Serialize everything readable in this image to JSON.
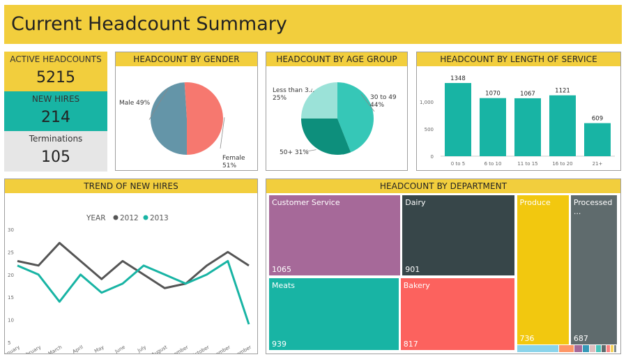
{
  "dashboard": {
    "title": "Current Headcount Summary"
  },
  "kpis": [
    {
      "label": "ACTIVE HEADCOUNTS",
      "value": "5215",
      "color": "#f2ce3d"
    },
    {
      "label": "NEW HIRES",
      "value": "214",
      "color": "#18b4a4"
    },
    {
      "label": "Terminations",
      "value": "105",
      "color": "#e6e6e6"
    }
  ],
  "panels": {
    "gender": "HEADCOUNT BY GENDER",
    "age": "HEADCOUNT BY AGE GROUP",
    "service": "HEADCOUNT BY LENGTH OF SERVICE",
    "trend": "TREND OF NEW HIRES",
    "department": "HEADCOUNT BY DEPARTMENT"
  },
  "chart_data": [
    {
      "id": "gender",
      "type": "pie",
      "title": "HEADCOUNT BY GENDER",
      "slices": [
        {
          "label": "Male",
          "value": 49,
          "display": "Male 49%",
          "color": "#6495a8"
        },
        {
          "label": "Female",
          "value": 51,
          "display": "Female 51%",
          "color": "#f6786f"
        }
      ]
    },
    {
      "id": "age",
      "type": "pie",
      "title": "HEADCOUNT BY AGE GROUP",
      "slices": [
        {
          "label": "30 to 49",
          "value": 44,
          "display": "30 to 49 44%",
          "color": "#36c7b7"
        },
        {
          "label": "50+",
          "value": 31,
          "display": "50+ 31%",
          "color": "#0d8f7c"
        },
        {
          "label": "Less than 3...",
          "value": 25,
          "display": "Less than 3... 25%",
          "color": "#9be2d8"
        }
      ]
    },
    {
      "id": "service",
      "type": "bar",
      "title": "HEADCOUNT BY LENGTH OF SERVICE",
      "categories": [
        "0 to 5",
        "6 to 10",
        "11 to 15",
        "16 to 20",
        "21+"
      ],
      "values": [
        1348,
        1070,
        1067,
        1121,
        609
      ],
      "ylim": [
        0,
        1400
      ],
      "yticks": [
        "0",
        "500",
        "1,000"
      ],
      "color": "#18b4a4"
    },
    {
      "id": "trend",
      "type": "line",
      "title": "TREND OF NEW HIRES",
      "legend_title": "YEAR",
      "categories": [
        "January",
        "February",
        "March",
        "April",
        "May",
        "June",
        "July",
        "August",
        "September",
        "October",
        "November",
        "December"
      ],
      "ylim": [
        5,
        30
      ],
      "yticks": [
        "5",
        "10",
        "15",
        "20",
        "25",
        "30"
      ],
      "series": [
        {
          "name": "2012",
          "color": "#555555",
          "values": [
            23,
            22,
            27,
            23,
            19,
            23,
            20,
            17,
            18,
            22,
            25,
            22
          ]
        },
        {
          "name": "2013",
          "color": "#18b4a4",
          "values": [
            22,
            20,
            14,
            20,
            16,
            18,
            22,
            20,
            18,
            20,
            23,
            9
          ]
        }
      ]
    },
    {
      "id": "department",
      "type": "treemap",
      "title": "HEADCOUNT BY DEPARTMENT",
      "items": [
        {
          "name": "Customer Service",
          "value": 1065,
          "color": "#a66999"
        },
        {
          "name": "Dairy",
          "value": 901,
          "color": "#374649"
        },
        {
          "name": "Meats",
          "value": 939,
          "color": "#18b4a4"
        },
        {
          "name": "Bakery",
          "value": 817,
          "color": "#fc625e"
        },
        {
          "name": "Produce",
          "value": 736,
          "color": "#f2c80f"
        },
        {
          "name": "Processed ...",
          "value": 687,
          "color": "#5f6b6d"
        }
      ],
      "small_tile_colors": [
        "#8ad4eb",
        "#fe9666",
        "#a66999",
        "#3599b8",
        "#dfbfbf",
        "#4ac5bb",
        "#5f6b6d",
        "#fb8281",
        "#f4d25a",
        "#7f898a"
      ]
    }
  ]
}
